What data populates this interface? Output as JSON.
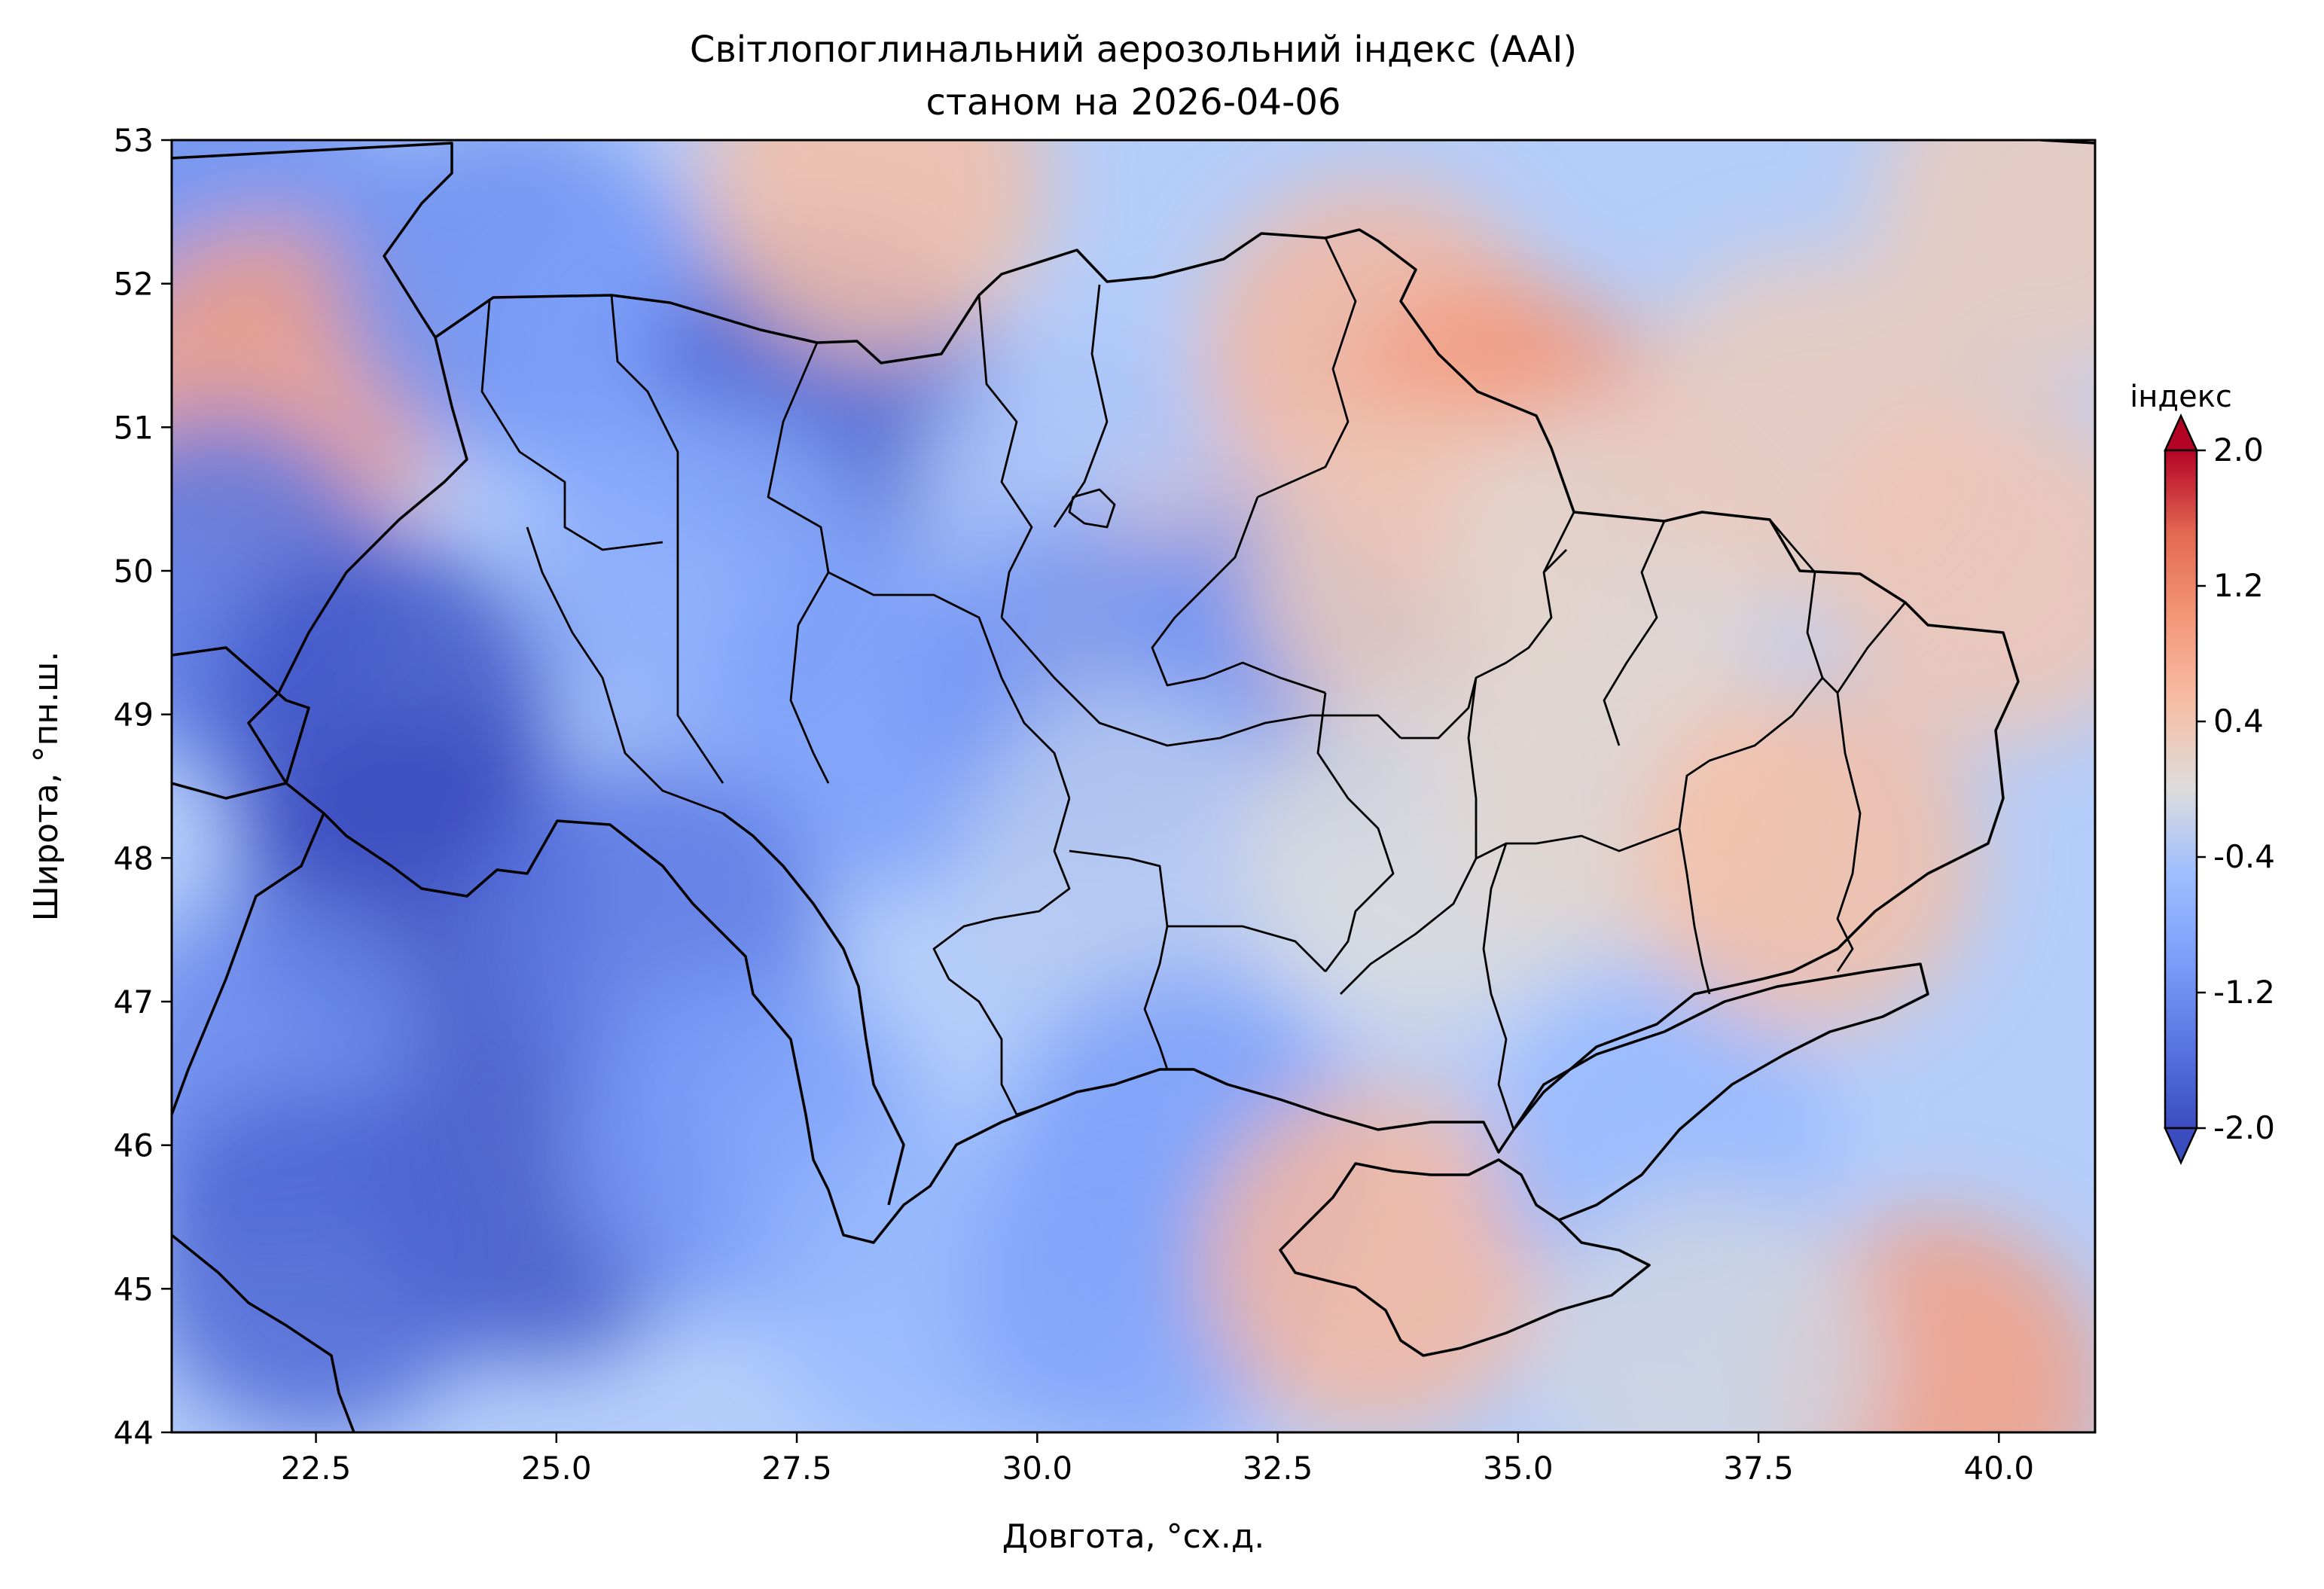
{
  "chart_data": {
    "type": "heatmap",
    "title": "Світлопоглинальний аерозольний індекс (AAI)",
    "subtitle": "станом на 2026-04-06",
    "xlabel": "Довгота, °сх.д.",
    "ylabel": "Широта, °пн.ш.",
    "xlim": [
      21.0,
      41.0
    ],
    "ylim": [
      44.0,
      53.0
    ],
    "x_ticks": [
      22.5,
      25.0,
      27.5,
      30.0,
      32.5,
      35.0,
      37.5,
      40.0
    ],
    "x_tick_labels": [
      "22.5",
      "25.0",
      "27.5",
      "30.0",
      "32.5",
      "35.0",
      "37.5",
      "40.0"
    ],
    "y_ticks": [
      44,
      45,
      46,
      47,
      48,
      49,
      50,
      51,
      52,
      53
    ],
    "y_tick_labels": [
      "44",
      "45",
      "46",
      "47",
      "48",
      "49",
      "50",
      "51",
      "52",
      "53"
    ],
    "colormap": "coolwarm",
    "colorbar": {
      "label": "індекс",
      "range": [
        -2.0,
        2.0
      ],
      "ticks": [
        -2.0,
        -1.2,
        -0.4,
        0.4,
        1.2,
        2.0
      ],
      "tick_labels": [
        "-2.0",
        "-1.2",
        "-0.4",
        "0.4",
        "1.2",
        "2.0"
      ],
      "extend": "both",
      "low_color": "#3b4cc0",
      "high_color": "#b40426"
    },
    "field_samples": [
      {
        "lon": 21.5,
        "lat": 52.5,
        "value": -1.2
      },
      {
        "lon": 22.0,
        "lat": 51.2,
        "value": 0.9
      },
      {
        "lon": 21.5,
        "lat": 49.9,
        "value": -1.5
      },
      {
        "lon": 23.2,
        "lat": 49.0,
        "value": -1.9
      },
      {
        "lon": 23.5,
        "lat": 47.8,
        "value": -2.0
      },
      {
        "lon": 22.0,
        "lat": 46.5,
        "value": -1.3
      },
      {
        "lon": 24.8,
        "lat": 45.7,
        "value": -1.9
      },
      {
        "lon": 22.5,
        "lat": 45.2,
        "value": -1.7
      },
      {
        "lon": 24.5,
        "lat": 52.0,
        "value": -1.2
      },
      {
        "lon": 26.0,
        "lat": 51.5,
        "value": -1.0
      },
      {
        "lon": 27.8,
        "lat": 51.2,
        "value": -1.8
      },
      {
        "lon": 28.3,
        "lat": 52.7,
        "value": 0.5
      },
      {
        "lon": 26.5,
        "lat": 50.0,
        "value": -0.8
      },
      {
        "lon": 28.5,
        "lat": 49.0,
        "value": -1.0
      },
      {
        "lon": 26.0,
        "lat": 47.5,
        "value": -1.5
      },
      {
        "lon": 27.0,
        "lat": 46.0,
        "value": -1.0
      },
      {
        "lon": 29.0,
        "lat": 45.0,
        "value": -0.6
      },
      {
        "lon": 30.5,
        "lat": 50.5,
        "value": -0.4
      },
      {
        "lon": 31.5,
        "lat": 49.4,
        "value": 0.4
      },
      {
        "lon": 32.8,
        "lat": 49.4,
        "value": -1.3
      },
      {
        "lon": 30.5,
        "lat": 49.2,
        "value": -1.1
      },
      {
        "lon": 31.0,
        "lat": 48.0,
        "value": -0.3
      },
      {
        "lon": 31.5,
        "lat": 46.0,
        "value": -1.0
      },
      {
        "lon": 31.0,
        "lat": 45.0,
        "value": -0.9
      },
      {
        "lon": 33.5,
        "lat": 51.5,
        "value": 0.6
      },
      {
        "lon": 34.9,
        "lat": 50.8,
        "value": 1.0
      },
      {
        "lon": 34.0,
        "lat": 50.0,
        "value": 0.3
      },
      {
        "lon": 33.5,
        "lat": 45.2,
        "value": 0.6
      },
      {
        "lon": 34.0,
        "lat": 48.0,
        "value": 0.0
      },
      {
        "lon": 36.0,
        "lat": 50.0,
        "value": 0.1
      },
      {
        "lon": 36.0,
        "lat": 48.5,
        "value": 0.1
      },
      {
        "lon": 36.5,
        "lat": 46.0,
        "value": -0.6
      },
      {
        "lon": 38.0,
        "lat": 48.0,
        "value": 0.5
      },
      {
        "lon": 38.0,
        "lat": 51.0,
        "value": 0.3
      },
      {
        "lon": 40.0,
        "lat": 50.0,
        "value": 0.4
      },
      {
        "lon": 40.5,
        "lat": 52.5,
        "value": 0.3
      },
      {
        "lon": 39.3,
        "lat": 44.3,
        "value": 0.9
      },
      {
        "lon": 37.0,
        "lat": 44.5,
        "value": -0.1
      }
    ]
  },
  "colors": {
    "frame": "#000000",
    "boundary": "#000000"
  }
}
